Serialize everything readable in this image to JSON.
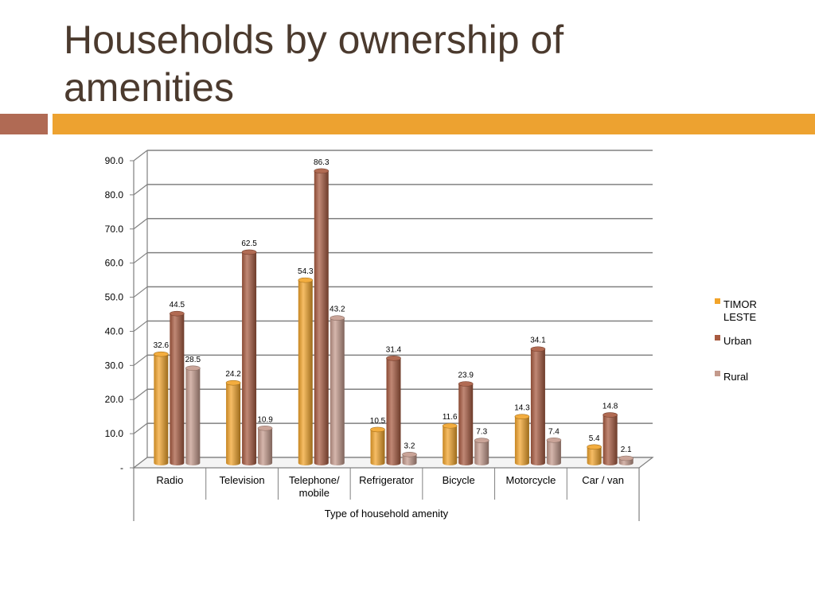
{
  "slide": {
    "title_line1": "Households by ownership of",
    "title_line2": "amenities"
  },
  "colors": {
    "title_bar_left": "#b06a54",
    "title_bar_right": "#eda230",
    "title_text": "#4b3a2e"
  },
  "chart_data": {
    "type": "bar",
    "xlabel": "Type of household amenity",
    "ylabel": "",
    "ylim": [
      0,
      90
    ],
    "y_ticks": [
      "-",
      "10.0",
      "20.0",
      "30.0",
      "40.0",
      "50.0",
      "60.0",
      "70.0",
      "80.0",
      "90.0"
    ],
    "grid": true,
    "legend_position": "right",
    "categories": [
      {
        "lines": [
          "Radio"
        ]
      },
      {
        "lines": [
          "Television"
        ]
      },
      {
        "lines": [
          "Telephone/",
          "mobile"
        ]
      },
      {
        "lines": [
          "Refrigerator"
        ]
      },
      {
        "lines": [
          "Bicycle"
        ]
      },
      {
        "lines": [
          "Motorcycle"
        ]
      },
      {
        "lines": [
          "Car / van"
        ]
      }
    ],
    "series": [
      {
        "legend_lines": [
          "TIMOR",
          "LESTE"
        ],
        "color": "#f2a42a",
        "values": [
          32.6,
          24.2,
          54.3,
          10.5,
          11.6,
          14.3,
          5.4
        ]
      },
      {
        "legend_lines": [
          "Urban"
        ],
        "color": "#a85a40",
        "values": [
          44.5,
          62.5,
          86.3,
          31.4,
          23.9,
          34.1,
          14.8
        ]
      },
      {
        "legend_lines": [
          "Rural"
        ],
        "color": "#c49a8c",
        "values": [
          28.5,
          10.9,
          43.2,
          3.2,
          7.3,
          7.4,
          2.1
        ]
      }
    ]
  }
}
